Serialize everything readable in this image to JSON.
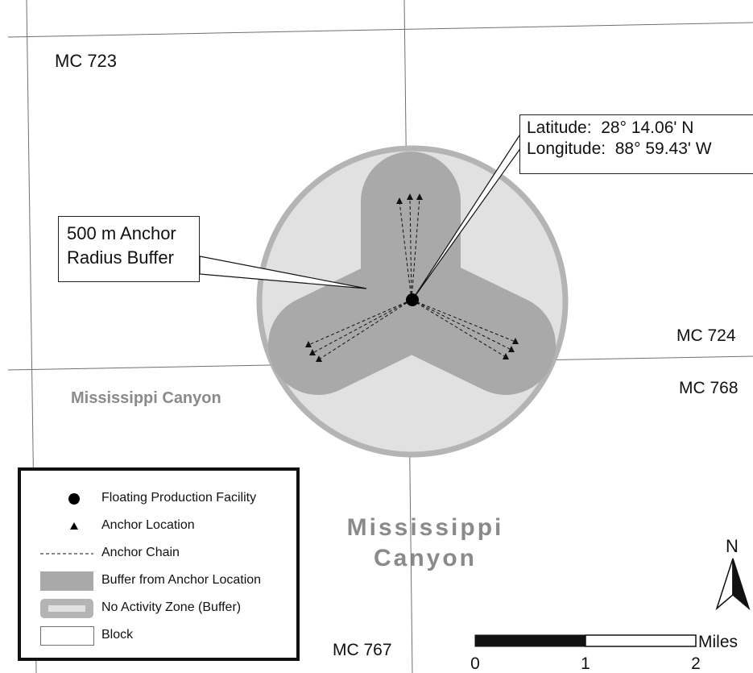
{
  "block_labels": {
    "mc723": "MC 723",
    "mc724": "MC 724",
    "mc768": "MC 768",
    "mc767": "MC 767"
  },
  "area_labels": {
    "small": "Mississippi Canyon",
    "large_line1": "Mississippi",
    "large_line2": "Canyon"
  },
  "coordinates_callout": {
    "latitude": "Latitude:  28° 14.06' N",
    "longitude": "Longitude:  88° 59.43' W"
  },
  "buffer_callout": {
    "line1": "500 m Anchor",
    "line2": "Radius Buffer"
  },
  "legend": {
    "items": [
      {
        "label": "Floating Production Facility",
        "icon": "filled-circle"
      },
      {
        "label": "Anchor Location",
        "icon": "triangle"
      },
      {
        "label": "Anchor Chain",
        "icon": "dashed-line"
      },
      {
        "label": "Buffer from Anchor Location",
        "icon": "gray-rectangle"
      },
      {
        "label": "No Activity Zone (Buffer)",
        "icon": "gray-outline-rectangle"
      },
      {
        "label": "Block",
        "icon": "white-rectangle"
      }
    ]
  },
  "north_arrow": {
    "label": "N"
  },
  "scale_bar": {
    "unit": "Miles",
    "ticks": [
      "0",
      "1",
      "2"
    ]
  },
  "colors": {
    "anchor_buffer": "#a9a9a9",
    "no_activity_fill": "#e1e1e1",
    "no_activity_ring": "#b4b4b4",
    "block_line": "#6f6f6f",
    "area_label": "#8a8a8a"
  }
}
